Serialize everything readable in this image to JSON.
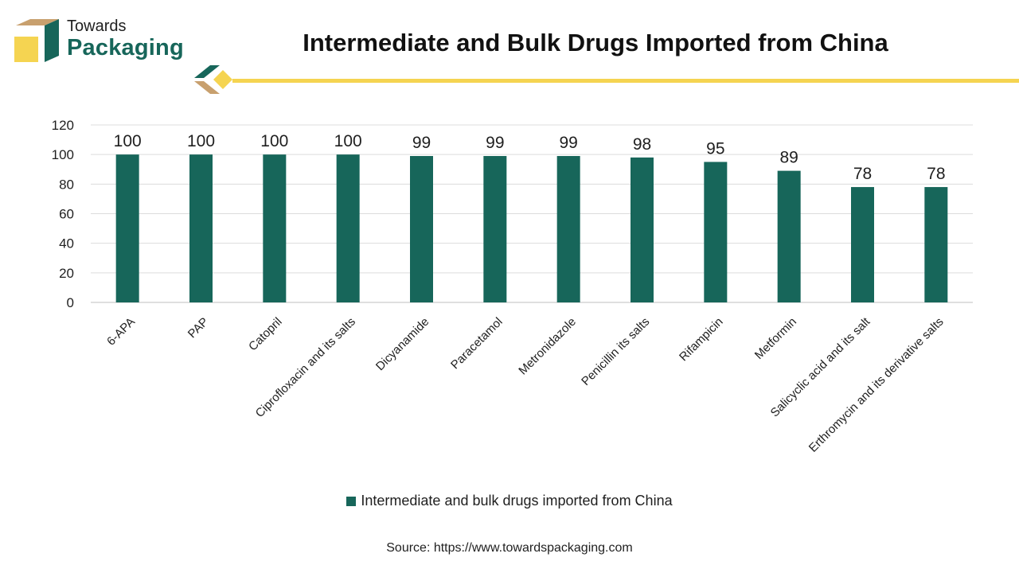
{
  "brand": {
    "line1": "Towards",
    "line2": "Packaging"
  },
  "colors": {
    "bar": "#17665a",
    "accent": "#f5d451",
    "box_tan": "#c8a06e",
    "box_dark": "#17665a",
    "box_yellow": "#f5d451"
  },
  "chart_data": {
    "type": "bar",
    "title": "Intermediate and Bulk Drugs Imported from China",
    "categories": [
      "6-APA",
      "PAP",
      "Catopril",
      "Ciprofloxacin and its salts",
      "Dicyanamide",
      "Paracetamol",
      "Metronidazole",
      "Penicillin its salts",
      "Rifampicin",
      "Metformin",
      "Salicyclic acid and its salt",
      "Erthromycin and its derivative salts"
    ],
    "series": [
      {
        "name": "Intermediate and bulk drugs imported from China",
        "values": [
          100,
          100,
          100,
          100,
          99,
          99,
          99,
          98,
          95,
          89,
          78,
          78
        ]
      }
    ],
    "y_ticks": [
      "0",
      "20",
      "40",
      "60",
      "80",
      "100",
      "120"
    ],
    "ylim": [
      0,
      120
    ],
    "xlabel": "",
    "ylabel": "",
    "grid": true,
    "legend_position": "bottom"
  },
  "source": "Source: https://www.towardspackaging.com"
}
